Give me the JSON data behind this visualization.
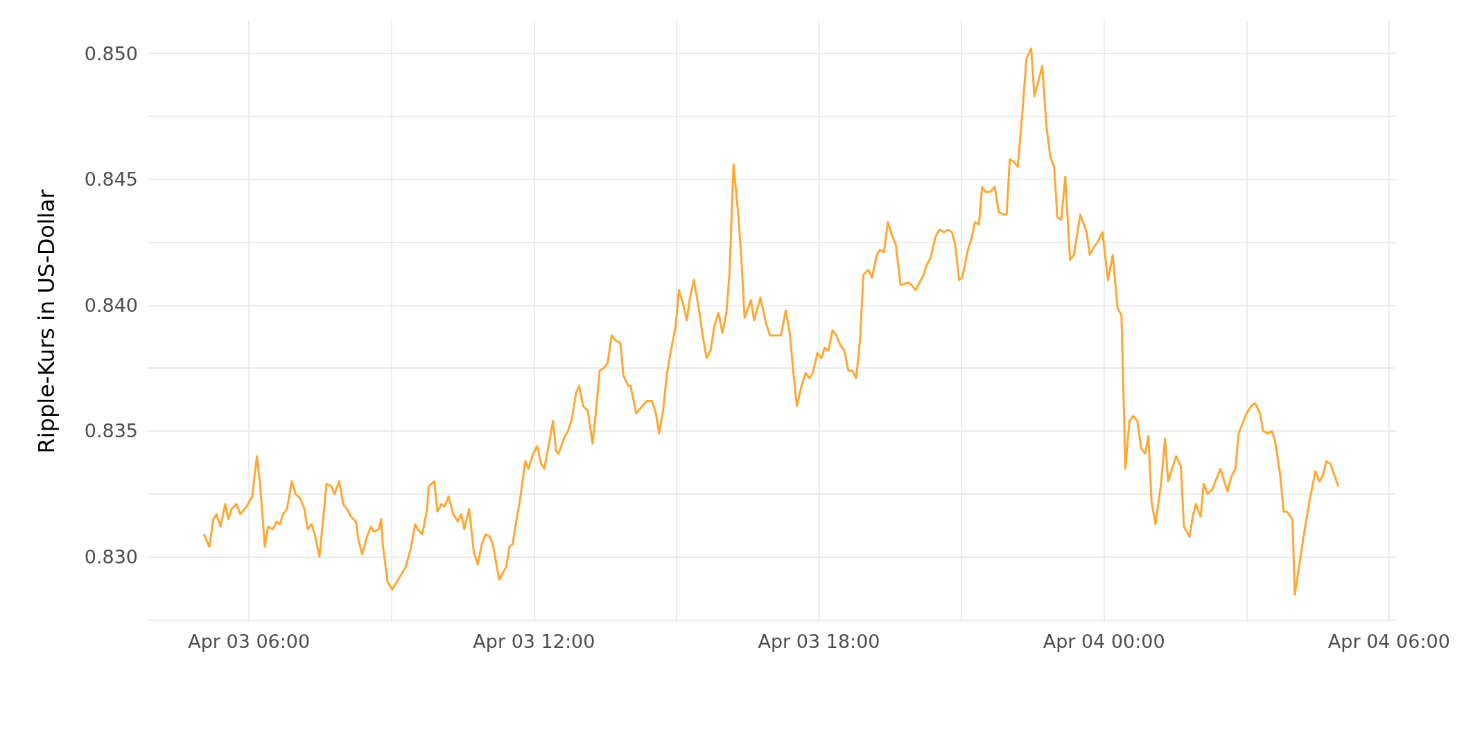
{
  "chart_data": {
    "type": "line",
    "ylabel": "Ripple-Kurs in US-Dollar",
    "color": "#ffa733",
    "x": [
      "--04-03T05:03",
      "--04-03T05:10",
      "--04-03T05:15",
      "--04-03T05:19",
      "--04-03T05:24",
      "--04-03T05:30",
      "--04-03T05:34",
      "--04-03T05:38",
      "--04-03T05:44",
      "--04-03T05:49",
      "--04-03T05:57",
      "--04-03T06:04",
      "--04-03T06:10",
      "--04-03T06:14",
      "--04-03T06:20",
      "--04-03T06:24",
      "--04-03T06:30",
      "--04-03T06:35",
      "--04-03T06:39",
      "--04-03T06:43",
      "--04-03T06:48",
      "--04-03T06:54",
      "--04-03T06:59",
      "--04-03T07:05",
      "--04-03T07:10",
      "--04-03T07:14",
      "--04-03T07:19",
      "--04-03T07:23",
      "--04-03T07:29",
      "--04-03T07:34",
      "--04-03T07:38",
      "--04-03T07:44",
      "--04-03T07:48",
      "--04-03T07:54",
      "--04-03T07:59",
      "--04-03T08:04",
      "--04-03T08:09",
      "--04-03T08:15",
      "--04-03T08:18",
      "--04-03T08:23",
      "--04-03T08:29",
      "--04-03T08:34",
      "--04-03T08:38",
      "--04-03T08:44",
      "--04-03T08:47",
      "--04-03T08:49",
      "--04-03T08:55",
      "--04-03T09:01",
      "--04-03T09:18",
      "--04-03T09:24",
      "--04-03T09:30",
      "--04-03T09:33",
      "--04-03T09:39",
      "--04-03T09:45",
      "--04-03T09:47",
      "--04-03T09:54",
      "--04-03T09:58",
      "--04-03T10:03",
      "--04-03T10:07",
      "--04-03T10:12",
      "--04-03T10:18",
      "--04-03T10:24",
      "--04-03T10:28",
      "--04-03T10:32",
      "--04-03T10:38",
      "--04-03T10:44",
      "--04-03T10:49",
      "--04-03T10:54",
      "--04-03T10:59",
      "--04-03T11:04",
      "--04-03T11:08",
      "--04-03T11:16",
      "--04-03T11:25",
      "--04-03T11:29",
      "--04-03T11:33",
      "--04-03T11:38",
      "--04-03T11:42",
      "--04-03T11:49",
      "--04-03T11:53",
      "--04-03T11:59",
      "--04-03T12:04",
      "--04-03T12:09",
      "--04-03T12:13",
      "--04-03T12:20",
      "--04-03T12:24",
      "--04-03T12:28",
      "--04-03T12:31",
      "--04-03T12:39",
      "--04-03T12:43",
      "--04-03T12:48",
      "--04-03T12:53",
      "--04-03T12:57",
      "--04-03T13:02",
      "--04-03T13:08",
      "--04-03T13:14",
      "--04-03T13:18",
      "--04-03T13:23",
      "--04-03T13:28",
      "--04-03T13:33",
      "--04-03T13:38",
      "--04-03T13:43",
      "--04-03T13:49",
      "--04-03T13:53",
      "--04-03T13:59",
      "--04-03T14:02",
      "--04-03T14:09",
      "--04-03T14:17",
      "--04-03T14:23",
      "--04-03T14:29",
      "--04-03T14:34",
      "--04-03T14:38",
      "--04-03T14:43",
      "--04-03T14:48",
      "--04-03T14:53",
      "--04-03T14:59",
      "--04-03T15:03",
      "--04-03T15:08",
      "--04-03T15:13",
      "--04-03T15:17",
      "--04-03T15:22",
      "--04-03T15:28",
      "--04-03T15:33",
      "--04-03T15:38",
      "--04-03T15:43",
      "--04-03T15:48",
      "--04-03T15:53",
      "--04-03T15:58",
      "--04-03T16:03",
      "--04-03T16:07",
      "--04-03T16:12",
      "--04-03T16:18",
      "--04-03T16:22",
      "--04-03T16:26",
      "--04-03T16:34",
      "--04-03T16:38",
      "--04-03T16:46",
      "--04-03T16:53",
      "--04-03T16:58",
      "--04-03T17:03",
      "--04-03T17:12",
      "--04-03T17:18",
      "--04-03T17:23",
      "--04-03T17:28",
      "--04-03T17:32",
      "--04-03T17:38",
      "--04-03T17:43",
      "--04-03T17:48",
      "--04-03T17:52",
      "--04-03T17:58",
      "--04-03T18:03",
      "--04-03T18:07",
      "--04-03T18:12",
      "--04-03T18:17",
      "--04-03T18:22",
      "--04-03T18:27",
      "--04-03T18:32",
      "--04-03T18:37",
      "--04-03T18:42",
      "--04-03T18:47",
      "--04-03T18:52",
      "--04-03T18:56",
      "--04-03T19:02",
      "--04-03T19:07",
      "--04-03T19:13",
      "--04-03T19:17",
      "--04-03T19:22",
      "--04-03T19:27",
      "--04-03T19:32",
      "--04-03T19:37",
      "--04-03T19:43",
      "--04-03T19:53",
      "--04-03T19:57",
      "--04-03T20:02",
      "--04-03T20:07",
      "--04-03T20:12",
      "--04-03T20:16",
      "--04-03T20:21",
      "--04-03T20:27",
      "--04-03T20:32",
      "--04-03T20:38",
      "--04-03T20:43",
      "--04-03T20:48",
      "--04-03T20:52",
      "--04-03T20:57",
      "--04-03T21:01",
      "--04-03T21:08",
      "--04-03T21:13",
      "--04-03T21:17",
      "--04-03T21:22",
      "--04-03T21:26",
      "--04-03T21:30",
      "--04-03T21:36",
      "--04-03T21:42",
      "--04-03T21:47",
      "--04-03T21:53",
      "--04-03T21:57",
      "--04-03T22:01",
      "--04-03T22:06",
      "--04-03T22:11",
      "--04-03T22:17",
      "--04-03T22:22",
      "--04-03T22:28",
      "--04-03T22:32",
      "--04-03T22:42",
      "--04-03T22:47",
      "--04-03T22:52",
      "--04-03T22:57",
      "--04-03T23:01",
      "--04-03T23:06",
      "--04-03T23:11",
      "--04-03T23:17",
      "--04-03T23:22",
      "--04-03T23:30",
      "--04-03T23:38",
      "--04-03T23:42",
      "--04-03T23:47",
      "--04-03T23:52",
      "--04-03T23:58",
      "--04-04T00:05",
      "--04-04T00:11",
      "--04-04T00:17",
      "--04-04T00:22",
      "--04-04T00:27",
      "--04-04T00:32",
      "--04-04T00:37",
      "--04-04T00:42",
      "--04-04T00:47",
      "--04-04T00:52",
      "--04-04T00:56",
      "--04-04T01:00",
      "--04-04T01:05",
      "--04-04T01:12",
      "--04-04T01:17",
      "--04-04T01:21",
      "--04-04T01:31",
      "--04-04T01:37",
      "--04-04T01:41",
      "--04-04T01:48",
      "--04-04T01:52",
      "--04-04T01:56",
      "--04-04T02:02",
      "--04-04T02:06",
      "--04-04T02:11",
      "--04-04T02:17",
      "--04-04T02:22",
      "--04-04T02:27",
      "--04-04T02:31",
      "--04-04T02:36",
      "--04-04T02:41",
      "--04-04T02:46",
      "--04-04T02:50",
      "--04-04T03:00",
      "--04-04T03:06",
      "--04-04T03:11",
      "--04-04T03:17",
      "--04-04T03:21",
      "--04-04T03:27",
      "--04-04T03:32",
      "--04-04T03:36",
      "--04-04T03:42",
      "--04-04T03:47",
      "--04-04T03:51",
      "--04-04T03:58",
      "--04-04T04:01",
      "--04-04T04:12",
      "--04-04T04:20",
      "--04-04T04:27",
      "--04-04T04:32",
      "--04-04T04:36",
      "--04-04T04:41",
      "--04-04T04:46",
      "--04-04T04:56"
    ],
    "values": [
      0.8309,
      0.8304,
      0.8315,
      0.8317,
      0.8312,
      0.8321,
      0.8315,
      0.8319,
      0.8321,
      0.8317,
      0.832,
      0.8324,
      0.834,
      0.8329,
      0.8304,
      0.8312,
      0.8311,
      0.8314,
      0.8313,
      0.8317,
      0.8319,
      0.833,
      0.8325,
      0.8323,
      0.8319,
      0.8311,
      0.8313,
      0.8309,
      0.83,
      0.8316,
      0.8329,
      0.8328,
      0.8325,
      0.833,
      0.8321,
      0.8319,
      0.8316,
      0.8314,
      0.8307,
      0.8301,
      0.8308,
      0.8312,
      0.831,
      0.8311,
      0.8315,
      0.8305,
      0.829,
      0.8287,
      0.8296,
      0.8303,
      0.8313,
      0.8311,
      0.8309,
      0.8319,
      0.8328,
      0.833,
      0.8318,
      0.8321,
      0.832,
      0.8324,
      0.8317,
      0.8314,
      0.8317,
      0.8311,
      0.8319,
      0.8302,
      0.8297,
      0.8305,
      0.8309,
      0.8308,
      0.8305,
      0.8291,
      0.8296,
      0.8304,
      0.8305,
      0.8315,
      0.8322,
      0.8338,
      0.8335,
      0.8341,
      0.8344,
      0.8337,
      0.8335,
      0.8347,
      0.8354,
      0.8342,
      0.8341,
      0.8348,
      0.835,
      0.8355,
      0.8365,
      0.8368,
      0.836,
      0.8358,
      0.8345,
      0.8357,
      0.8374,
      0.8375,
      0.8377,
      0.8388,
      0.8386,
      0.8385,
      0.8372,
      0.8368,
      0.8368,
      0.8357,
      0.836,
      0.8362,
      0.8362,
      0.8357,
      0.8349,
      0.8358,
      0.8373,
      0.8382,
      0.8392,
      0.8406,
      0.8401,
      0.8394,
      0.8403,
      0.841,
      0.8399,
      0.8388,
      0.8379,
      0.8382,
      0.8392,
      0.8397,
      0.8389,
      0.8397,
      0.8413,
      0.8456,
      0.8436,
      0.8418,
      0.8395,
      0.8402,
      0.8394,
      0.8403,
      0.8393,
      0.8388,
      0.8388,
      0.8388,
      0.8398,
      0.8389,
      0.8372,
      0.836,
      0.8368,
      0.8373,
      0.8371,
      0.8373,
      0.8381,
      0.8379,
      0.8383,
      0.8382,
      0.839,
      0.8388,
      0.8384,
      0.8382,
      0.8374,
      0.8374,
      0.8371,
      0.8387,
      0.8412,
      0.8414,
      0.8411,
      0.842,
      0.8422,
      0.8421,
      0.8433,
      0.8428,
      0.8424,
      0.8408,
      0.8409,
      0.8408,
      0.8406,
      0.8409,
      0.8412,
      0.8416,
      0.8419,
      0.8427,
      0.843,
      0.8429,
      0.843,
      0.8429,
      0.8424,
      0.841,
      0.8411,
      0.8422,
      0.8427,
      0.8433,
      0.8432,
      0.8447,
      0.8445,
      0.8445,
      0.8447,
      0.8437,
      0.8436,
      0.8436,
      0.8458,
      0.8457,
      0.8455,
      0.8477,
      0.8498,
      0.8502,
      0.8483,
      0.8495,
      0.8472,
      0.8459,
      0.8455,
      0.8435,
      0.8434,
      0.8451,
      0.8418,
      0.842,
      0.8436,
      0.8429,
      0.842,
      0.8423,
      0.8425,
      0.8429,
      0.841,
      0.842,
      0.8399,
      0.8396,
      0.8335,
      0.8354,
      0.8356,
      0.8354,
      0.8343,
      0.8341,
      0.8348,
      0.8322,
      0.8313,
      0.8329,
      0.8347,
      0.833,
      0.834,
      0.8336,
      0.8312,
      0.8308,
      0.8316,
      0.8321,
      0.8316,
      0.8329,
      0.8325,
      0.8327,
      0.8331,
      0.8335,
      0.8331,
      0.8326,
      0.8332,
      0.8335,
      0.8349,
      0.8357,
      0.836,
      0.8361,
      0.8357,
      0.835,
      0.8349,
      0.835,
      0.8346,
      0.8334,
      0.8318,
      0.8318,
      0.8315,
      0.8285,
      0.8308,
      0.8323,
      0.8334,
      0.833,
      0.8332,
      0.8338,
      0.8337,
      0.8328
    ],
    "xlim": [
      "--04-03T03:52",
      "--04-04T06:08"
    ],
    "xticks": [
      {
        "value": "--04-03T06:00",
        "label": "Apr 03 06:00"
      },
      {
        "value": "--04-03T09:00",
        "label": null
      },
      {
        "value": "--04-03T12:00",
        "label": "Apr 03 12:00"
      },
      {
        "value": "--04-03T15:00",
        "label": null
      },
      {
        "value": "--04-03T18:00",
        "label": "Apr 03 18:00"
      },
      {
        "value": "--04-03T21:00",
        "label": null
      },
      {
        "value": "--04-04T00:00",
        "label": "Apr 04 00:00"
      },
      {
        "value": "--04-04T03:00",
        "label": null
      },
      {
        "value": "--04-04T06:00",
        "label": "Apr 04 06:00"
      }
    ],
    "ylim": [
      0.8274,
      0.8513
    ],
    "yticks": [
      {
        "value": 0.8275,
        "label": null
      },
      {
        "value": 0.83,
        "label": "0.830"
      },
      {
        "value": 0.8325,
        "label": null
      },
      {
        "value": 0.835,
        "label": "0.835"
      },
      {
        "value": 0.8375,
        "label": null
      },
      {
        "value": 0.84,
        "label": "0.840"
      },
      {
        "value": 0.8425,
        "label": null
      },
      {
        "value": 0.845,
        "label": "0.845"
      },
      {
        "value": 0.8475,
        "label": null
      },
      {
        "value": 0.85,
        "label": "0.850"
      }
    ],
    "grid": true
  }
}
